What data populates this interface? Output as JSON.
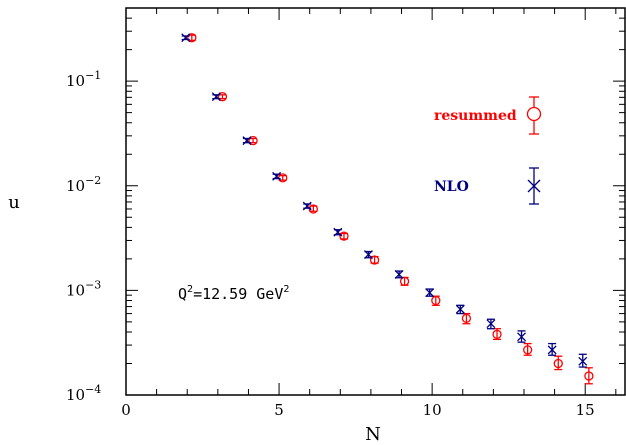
{
  "chart_data": {
    "type": "scatter",
    "title": "",
    "xlabel": "N",
    "ylabel": "u",
    "xlim": [
      0,
      16.3
    ],
    "ylim": [
      0.0001,
      0.5
    ],
    "yscale": "log",
    "x_ticks": [
      0,
      5,
      10,
      15
    ],
    "x_tick_labels": [
      "0",
      "5",
      "10",
      "15"
    ],
    "y_ticks": [
      0.0001,
      0.001,
      0.01,
      0.1
    ],
    "y_tick_mantissa": "10",
    "y_tick_exponents": [
      "−4",
      "−3",
      "−2",
      "−1"
    ],
    "legend_position": "right",
    "annotation": {
      "prefix": "Q",
      "sup1": "2",
      "middle": "=12.59 GeV",
      "sup2": "2"
    },
    "series": [
      {
        "name": "resummed",
        "color": "#ff0000",
        "marker": "circle",
        "points": [
          {
            "x": 2.15,
            "y": 0.26,
            "err_low": 0.245,
            "err_high": 0.275
          },
          {
            "x": 3.15,
            "y": 0.071,
            "err_low": 0.068,
            "err_high": 0.074
          },
          {
            "x": 4.15,
            "y": 0.027,
            "err_low": 0.0258,
            "err_high": 0.0283
          },
          {
            "x": 5.12,
            "y": 0.0119,
            "err_low": 0.0113,
            "err_high": 0.0125
          },
          {
            "x": 6.12,
            "y": 0.006,
            "err_low": 0.0057,
            "err_high": 0.0064
          },
          {
            "x": 7.12,
            "y": 0.0033,
            "err_low": 0.0031,
            "err_high": 0.0035
          },
          {
            "x": 8.12,
            "y": 0.00195,
            "err_low": 0.00182,
            "err_high": 0.0021
          },
          {
            "x": 9.1,
            "y": 0.00122,
            "err_low": 0.00112,
            "err_high": 0.00133
          },
          {
            "x": 10.12,
            "y": 0.0008,
            "err_low": 0.00072,
            "err_high": 0.00088
          },
          {
            "x": 11.12,
            "y": 0.00054,
            "err_low": 0.00048,
            "err_high": 0.0006
          },
          {
            "x": 12.12,
            "y": 0.00038,
            "err_low": 0.00034,
            "err_high": 0.00043
          },
          {
            "x": 13.12,
            "y": 0.00027,
            "err_low": 0.00024,
            "err_high": 0.00031
          },
          {
            "x": 14.12,
            "y": 0.0002,
            "err_low": 0.000175,
            "err_high": 0.000235
          },
          {
            "x": 15.12,
            "y": 0.000152,
            "err_low": 0.000128,
            "err_high": 0.000182
          }
        ]
      },
      {
        "name": "NLO",
        "color": "#00007f",
        "marker": "x",
        "points": [
          {
            "x": 1.95,
            "y": 0.26,
            "err_low": 0.25,
            "err_high": 0.27
          },
          {
            "x": 2.95,
            "y": 0.071,
            "err_low": 0.068,
            "err_high": 0.074
          },
          {
            "x": 3.95,
            "y": 0.027,
            "err_low": 0.0258,
            "err_high": 0.0283
          },
          {
            "x": 4.92,
            "y": 0.0123,
            "err_low": 0.0117,
            "err_high": 0.0129
          },
          {
            "x": 5.92,
            "y": 0.0064,
            "err_low": 0.0061,
            "err_high": 0.0067
          },
          {
            "x": 6.92,
            "y": 0.0036,
            "err_low": 0.0034,
            "err_high": 0.0038
          },
          {
            "x": 7.92,
            "y": 0.0022,
            "err_low": 0.00205,
            "err_high": 0.00235
          },
          {
            "x": 8.92,
            "y": 0.00142,
            "err_low": 0.00132,
            "err_high": 0.00153
          },
          {
            "x": 9.92,
            "y": 0.00095,
            "err_low": 0.00088,
            "err_high": 0.00103
          },
          {
            "x": 10.92,
            "y": 0.00066,
            "err_low": 0.0006,
            "err_high": 0.00072
          },
          {
            "x": 11.92,
            "y": 0.00048,
            "err_low": 0.00043,
            "err_high": 0.00053
          },
          {
            "x": 12.92,
            "y": 0.00036,
            "err_low": 0.00032,
            "err_high": 0.00041
          },
          {
            "x": 13.92,
            "y": 0.00027,
            "err_low": 0.00024,
            "err_high": 0.00031
          },
          {
            "x": 14.92,
            "y": 0.00021,
            "err_low": 0.000185,
            "err_high": 0.000245
          }
        ]
      }
    ]
  }
}
